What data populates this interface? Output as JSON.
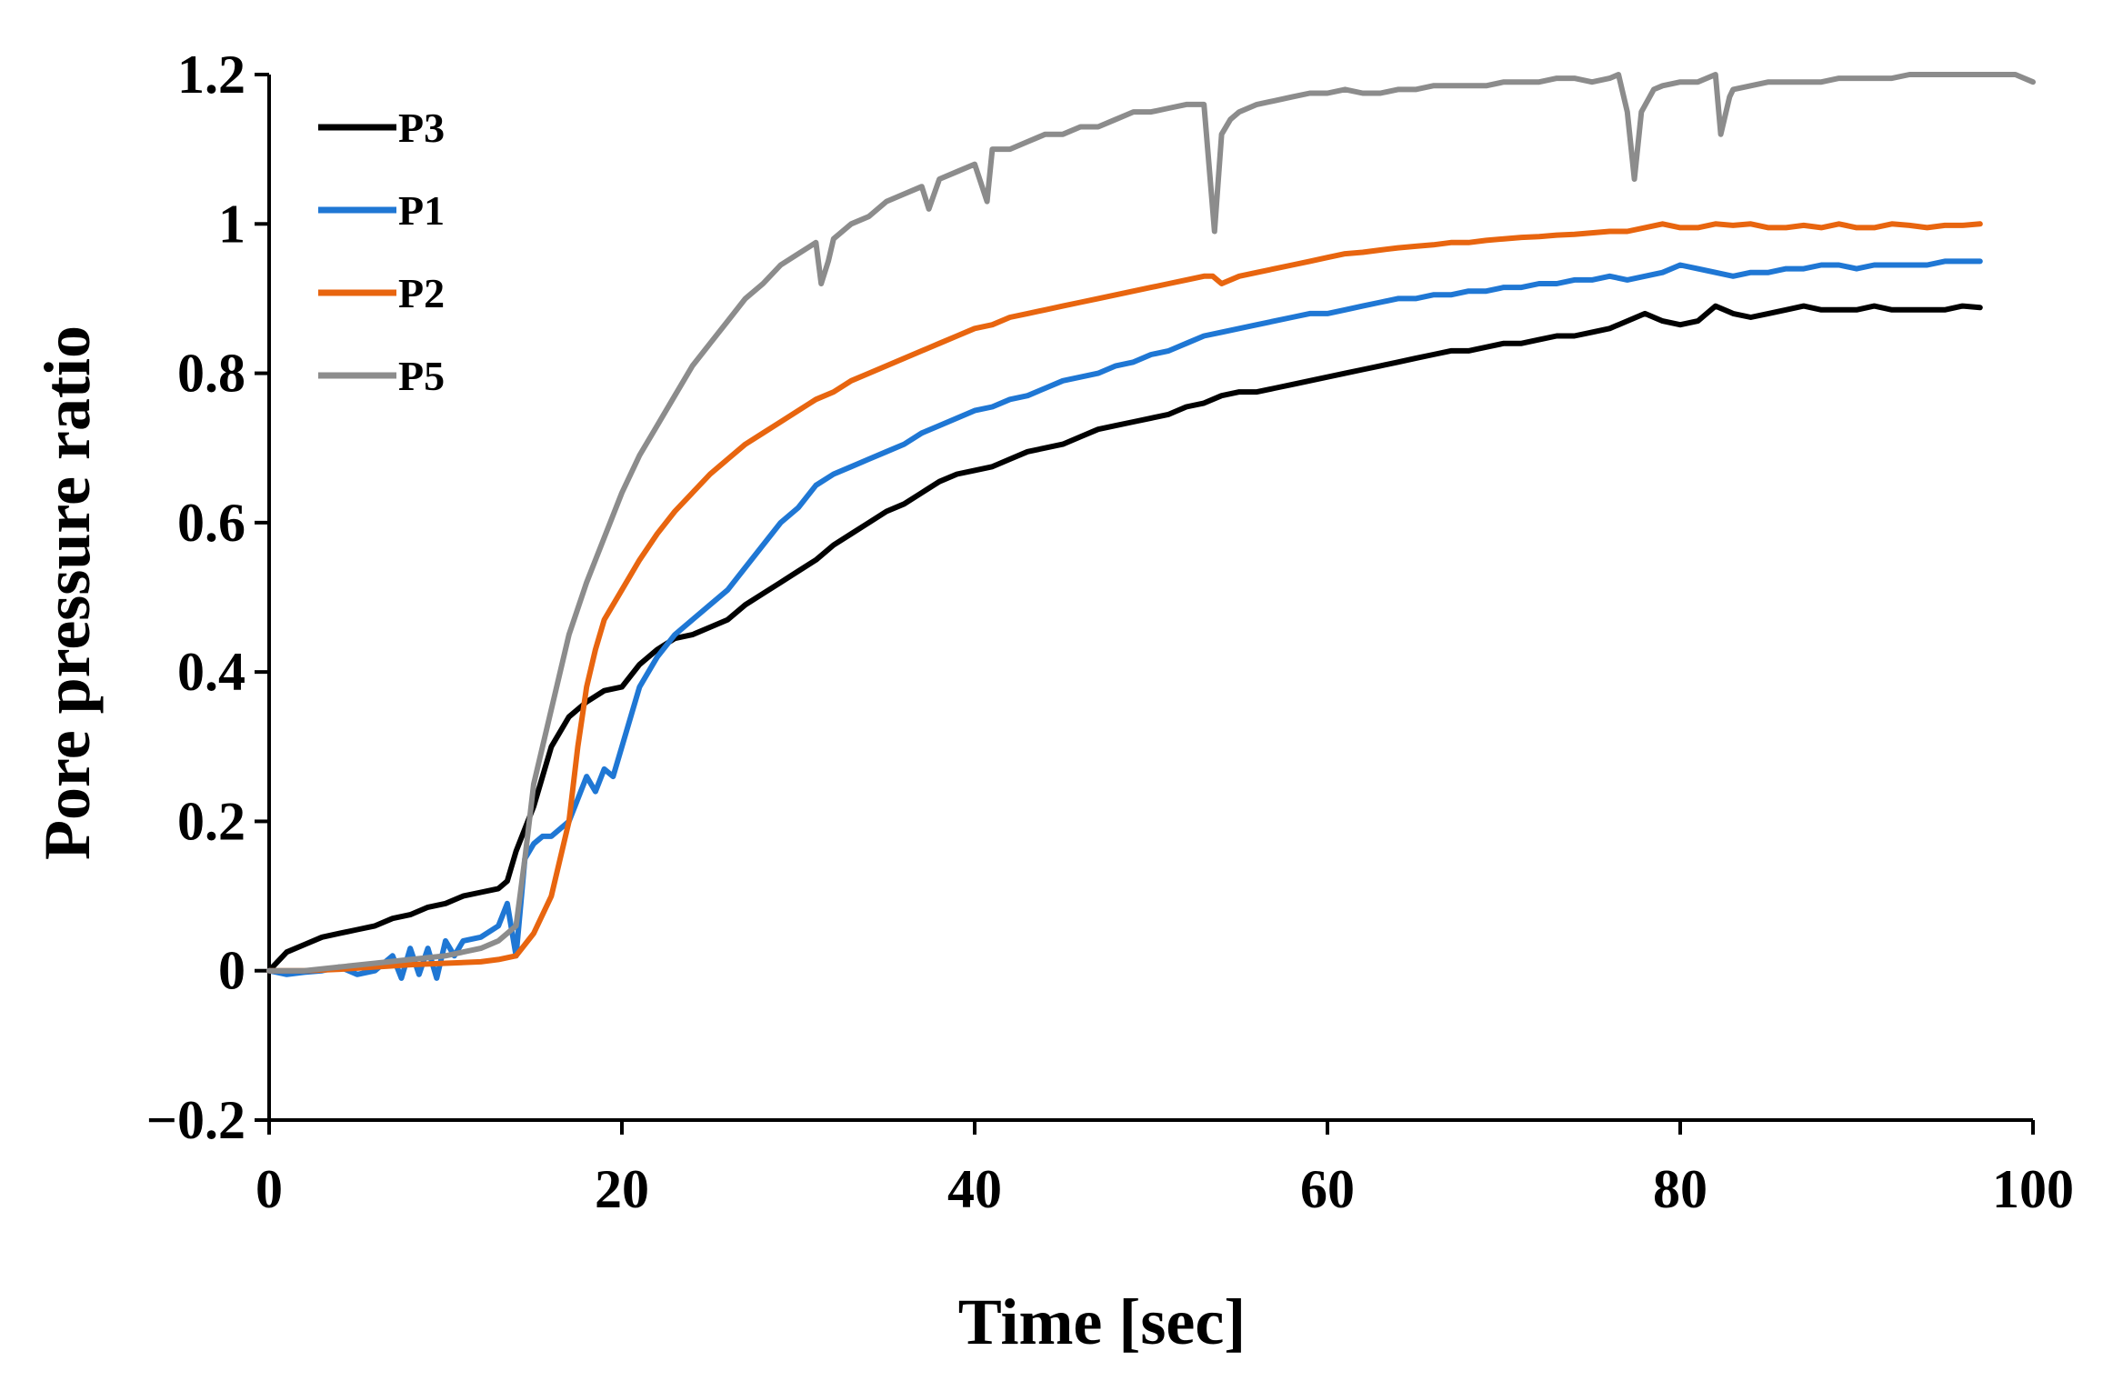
{
  "chart_data": {
    "type": "line",
    "title": "",
    "xlabel": "Time [sec]",
    "ylabel": "Pore pressure ratio",
    "xlim": [
      0,
      100
    ],
    "ylim": [
      -0.2,
      1.2
    ],
    "xticks": [
      0,
      20,
      40,
      60,
      80,
      100
    ],
    "xtick_labels": [
      "0",
      "20",
      "40",
      "60",
      "80",
      "100"
    ],
    "yticks": [
      -0.2,
      0,
      0.2,
      0.4,
      0.6,
      0.8,
      1,
      1.2
    ],
    "ytick_labels": [
      "−0.2",
      "0",
      "0.2",
      "0.4",
      "0.6",
      "0.8",
      "1",
      "1.2"
    ],
    "grid": false,
    "legend_position": "top-left",
    "series": [
      {
        "name": "P3",
        "color": "#000000",
        "x": [
          0,
          1,
          2,
          3,
          4,
          5,
          6,
          7,
          8,
          9,
          10,
          11,
          12,
          13,
          13.5,
          14,
          14.5,
          15,
          15.5,
          16,
          17,
          18,
          19,
          20,
          21,
          22,
          23,
          24,
          25,
          26,
          27,
          28,
          29,
          30,
          31,
          32,
          33,
          34,
          35,
          36,
          37,
          38,
          39,
          40,
          41,
          42,
          43,
          44,
          45,
          46,
          47,
          48,
          49,
          50,
          51,
          52,
          53,
          54,
          55,
          56,
          57,
          58,
          59,
          60,
          61,
          62,
          63,
          64,
          65,
          66,
          67,
          68,
          69,
          70,
          71,
          72,
          73,
          74,
          75,
          76,
          77,
          78,
          79,
          80,
          81,
          82,
          83,
          84,
          85,
          86,
          87,
          88,
          89,
          90,
          91,
          92,
          93,
          94,
          95,
          96,
          97
        ],
        "y": [
          0.0,
          0.025,
          0.035,
          0.045,
          0.05,
          0.055,
          0.06,
          0.07,
          0.075,
          0.085,
          0.09,
          0.1,
          0.105,
          0.11,
          0.12,
          0.16,
          0.19,
          0.22,
          0.26,
          0.3,
          0.34,
          0.36,
          0.375,
          0.38,
          0.41,
          0.43,
          0.445,
          0.45,
          0.46,
          0.47,
          0.49,
          0.505,
          0.52,
          0.535,
          0.55,
          0.57,
          0.585,
          0.6,
          0.615,
          0.625,
          0.64,
          0.655,
          0.665,
          0.67,
          0.675,
          0.685,
          0.695,
          0.7,
          0.705,
          0.715,
          0.725,
          0.73,
          0.735,
          0.74,
          0.745,
          0.755,
          0.76,
          0.77,
          0.775,
          0.775,
          0.78,
          0.785,
          0.79,
          0.795,
          0.8,
          0.805,
          0.81,
          0.815,
          0.82,
          0.825,
          0.83,
          0.83,
          0.835,
          0.84,
          0.84,
          0.845,
          0.85,
          0.85,
          0.855,
          0.86,
          0.87,
          0.88,
          0.87,
          0.865,
          0.87,
          0.89,
          0.88,
          0.875,
          0.88,
          0.885,
          0.89,
          0.885,
          0.885,
          0.885,
          0.89,
          0.885,
          0.885,
          0.885,
          0.885,
          0.89,
          0.888
        ]
      },
      {
        "name": "P1",
        "color": "#1f77d4",
        "x": [
          0,
          1,
          2,
          3,
          4,
          5,
          6,
          7,
          7.5,
          8,
          8.5,
          9,
          9.5,
          10,
          10.5,
          11,
          12,
          13,
          13.5,
          14,
          14.5,
          15,
          15.5,
          16,
          17,
          17.5,
          18,
          18.5,
          19,
          19.5,
          20,
          21,
          22,
          23,
          24,
          25,
          26,
          27,
          28,
          29,
          30,
          31,
          32,
          33,
          34,
          35,
          36,
          37,
          38,
          39,
          40,
          41,
          42,
          43,
          44,
          45,
          46,
          47,
          48,
          49,
          50,
          51,
          52,
          53,
          54,
          55,
          56,
          57,
          58,
          59,
          60,
          61,
          62,
          63,
          64,
          65,
          66,
          67,
          68,
          69,
          70,
          71,
          72,
          73,
          74,
          75,
          76,
          77,
          78,
          79,
          80,
          81,
          82,
          83,
          84,
          85,
          86,
          87,
          88,
          89,
          90,
          91,
          92,
          93,
          94,
          95,
          96,
          97
        ],
        "y": [
          0.0,
          -0.005,
          -0.002,
          0.0,
          0.005,
          -0.005,
          0.0,
          0.02,
          -0.01,
          0.03,
          -0.005,
          0.03,
          -0.01,
          0.04,
          0.02,
          0.04,
          0.045,
          0.06,
          0.09,
          0.02,
          0.15,
          0.17,
          0.18,
          0.18,
          0.2,
          0.23,
          0.26,
          0.24,
          0.27,
          0.26,
          0.3,
          0.38,
          0.42,
          0.45,
          0.47,
          0.49,
          0.51,
          0.54,
          0.57,
          0.6,
          0.62,
          0.65,
          0.665,
          0.675,
          0.685,
          0.695,
          0.705,
          0.72,
          0.73,
          0.74,
          0.75,
          0.755,
          0.765,
          0.77,
          0.78,
          0.79,
          0.795,
          0.8,
          0.81,
          0.815,
          0.825,
          0.83,
          0.84,
          0.85,
          0.855,
          0.86,
          0.865,
          0.87,
          0.875,
          0.88,
          0.88,
          0.885,
          0.89,
          0.895,
          0.9,
          0.9,
          0.905,
          0.905,
          0.91,
          0.91,
          0.915,
          0.915,
          0.92,
          0.92,
          0.925,
          0.925,
          0.93,
          0.925,
          0.93,
          0.935,
          0.945,
          0.94,
          0.935,
          0.93,
          0.935,
          0.935,
          0.94,
          0.94,
          0.945,
          0.945,
          0.94,
          0.945,
          0.945,
          0.945,
          0.945,
          0.95,
          0.95,
          0.95
        ]
      },
      {
        "name": "P2",
        "color": "#e8650f",
        "x": [
          0,
          2,
          4,
          6,
          8,
          10,
          12,
          13,
          14,
          15,
          16,
          17,
          17.5,
          18,
          18.5,
          19,
          20,
          21,
          22,
          23,
          24,
          25,
          26,
          27,
          28,
          29,
          30,
          31,
          32,
          33,
          34,
          35,
          36,
          37,
          38,
          39,
          40,
          41,
          42,
          43,
          44,
          45,
          46,
          47,
          48,
          49,
          50,
          51,
          52,
          53,
          53.5,
          54,
          55,
          56,
          57,
          58,
          59,
          60,
          61,
          62,
          63,
          64,
          65,
          66,
          67,
          68,
          69,
          70,
          71,
          72,
          73,
          74,
          75,
          76,
          77,
          78,
          79,
          80,
          81,
          82,
          83,
          84,
          85,
          86,
          87,
          88,
          89,
          90,
          91,
          92,
          93,
          94,
          95,
          96,
          97
        ],
        "y": [
          0.0,
          0.0,
          0.002,
          0.005,
          0.008,
          0.01,
          0.012,
          0.015,
          0.02,
          0.05,
          0.1,
          0.2,
          0.3,
          0.38,
          0.43,
          0.47,
          0.51,
          0.55,
          0.585,
          0.615,
          0.64,
          0.665,
          0.685,
          0.705,
          0.72,
          0.735,
          0.75,
          0.765,
          0.775,
          0.79,
          0.8,
          0.81,
          0.82,
          0.83,
          0.84,
          0.85,
          0.86,
          0.865,
          0.875,
          0.88,
          0.885,
          0.89,
          0.895,
          0.9,
          0.905,
          0.91,
          0.915,
          0.92,
          0.925,
          0.93,
          0.93,
          0.92,
          0.93,
          0.935,
          0.94,
          0.945,
          0.95,
          0.955,
          0.96,
          0.962,
          0.965,
          0.968,
          0.97,
          0.972,
          0.975,
          0.975,
          0.978,
          0.98,
          0.982,
          0.983,
          0.985,
          0.986,
          0.988,
          0.99,
          0.99,
          0.995,
          1.0,
          0.995,
          0.995,
          1.0,
          0.998,
          1.0,
          0.995,
          0.995,
          0.998,
          0.995,
          1.0,
          0.995,
          0.995,
          1.0,
          0.998,
          0.995,
          0.998,
          0.998,
          1.0
        ]
      },
      {
        "name": "P5",
        "color": "#8c8c8c",
        "x": [
          0,
          2,
          4,
          6,
          8,
          10,
          12,
          13,
          14,
          14.5,
          15,
          15.5,
          16,
          17,
          18,
          19,
          20,
          21,
          22,
          23,
          24,
          25,
          26,
          27,
          28,
          29,
          30,
          31,
          31.3,
          31.7,
          32,
          33,
          34,
          35,
          36,
          37,
          37.4,
          38,
          39,
          40,
          40.7,
          41,
          42,
          43,
          44,
          45,
          46,
          47,
          48,
          49,
          50,
          51,
          52,
          53,
          53.6,
          54,
          54.5,
          55,
          56,
          57,
          58,
          59,
          60,
          61,
          62,
          63,
          64,
          65,
          66,
          67,
          68,
          69,
          70,
          71,
          72,
          73,
          74,
          75,
          76,
          76.5,
          77,
          77.4,
          77.8,
          78.5,
          79,
          80,
          81,
          82,
          82.3,
          82.8,
          83,
          84,
          85,
          86,
          87,
          88,
          89,
          90,
          91,
          92,
          93,
          94,
          95,
          96,
          97,
          98,
          99,
          100
        ],
        "y": [
          0.0,
          0.0,
          0.005,
          0.01,
          0.015,
          0.02,
          0.03,
          0.04,
          0.06,
          0.15,
          0.25,
          0.3,
          0.35,
          0.45,
          0.52,
          0.58,
          0.64,
          0.69,
          0.73,
          0.77,
          0.81,
          0.84,
          0.87,
          0.9,
          0.92,
          0.945,
          0.96,
          0.975,
          0.92,
          0.95,
          0.98,
          1.0,
          1.01,
          1.03,
          1.04,
          1.05,
          1.02,
          1.06,
          1.07,
          1.08,
          1.03,
          1.1,
          1.1,
          1.11,
          1.12,
          1.12,
          1.13,
          1.13,
          1.14,
          1.15,
          1.15,
          1.155,
          1.16,
          1.16,
          0.99,
          1.12,
          1.14,
          1.15,
          1.16,
          1.165,
          1.17,
          1.175,
          1.175,
          1.18,
          1.175,
          1.175,
          1.18,
          1.18,
          1.185,
          1.185,
          1.185,
          1.185,
          1.19,
          1.19,
          1.19,
          1.195,
          1.195,
          1.19,
          1.195,
          1.2,
          1.15,
          1.06,
          1.15,
          1.18,
          1.185,
          1.19,
          1.19,
          1.2,
          1.12,
          1.17,
          1.18,
          1.185,
          1.19,
          1.19,
          1.19,
          1.19,
          1.195,
          1.195,
          1.195,
          1.195,
          1.2,
          1.2,
          1.2,
          1.2,
          1.2,
          1.2,
          1.2,
          1.19
        ]
      }
    ]
  }
}
